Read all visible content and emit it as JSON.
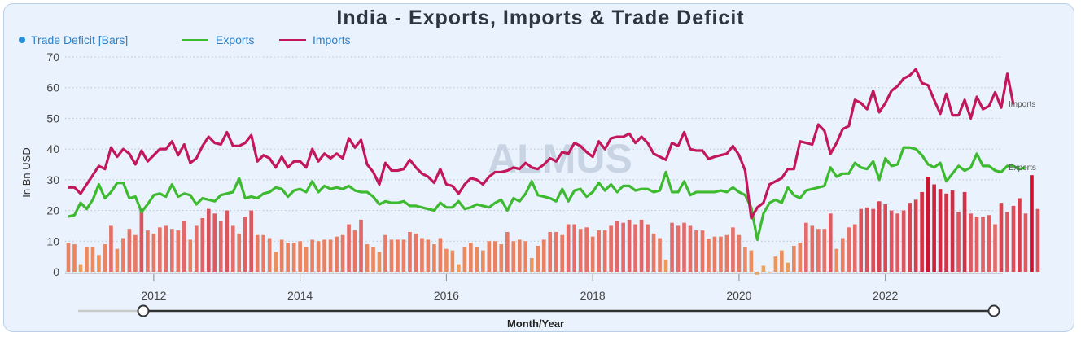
{
  "chart_data": {
    "type": "bar+line",
    "title": "India - Exports, Imports & Trade Deficit",
    "xlabel": "Month/Year",
    "ylabel": "In Bn USD",
    "ylim": [
      0,
      70
    ],
    "y_ticks": [
      "0",
      "10",
      "20",
      "30",
      "40",
      "50",
      "60",
      "70"
    ],
    "x_ticks": [
      "2012",
      "2014",
      "2016",
      "2018",
      "2020",
      "2022"
    ],
    "x_range": [
      "2010-11",
      "2023-08"
    ],
    "grid": true,
    "legend_position": "top-left",
    "watermark": "ALMUS",
    "legend": [
      {
        "label": "Trade Deficit [Bars]",
        "marker": "dot",
        "color": "#2a8fd8"
      },
      {
        "label": "Exports",
        "marker": "line",
        "color": "#3dba2f"
      },
      {
        "label": "Imports",
        "marker": "line",
        "color": "#c2185b"
      }
    ],
    "end_labels": {
      "imports": "Imports",
      "exports": "Exports"
    },
    "colors": {
      "deficit_low": "#f4a750",
      "deficit_mid": "#e36b6b",
      "deficit_high": "#c8102e"
    },
    "series": [
      {
        "name": "Imports",
        "values": [
          27.5,
          27.5,
          25.5,
          28.5,
          31.5,
          34.5,
          33.5,
          40.5,
          37.5,
          40,
          38.5,
          35,
          39.5,
          36,
          38,
          40,
          40,
          42.5,
          38,
          41.5,
          35.5,
          37,
          41,
          44,
          42,
          41.5,
          45.5,
          41,
          41,
          42,
          44.5,
          36,
          38,
          37,
          34,
          37.5,
          34,
          36,
          36,
          34,
          40,
          36,
          38.5,
          37,
          38.5,
          37,
          43.5,
          40.5,
          43,
          35,
          32.5,
          28.5,
          35.5,
          33,
          33,
          33.5,
          36.5,
          34,
          32,
          31,
          29,
          33.5,
          28.5,
          28,
          25.5,
          28.5,
          30.5,
          30,
          28.5,
          31,
          32.5,
          32.5,
          33,
          34,
          33.5,
          35.5,
          34,
          33.5,
          35,
          37,
          36,
          39,
          38.5,
          42,
          41,
          39,
          37.5,
          42.5,
          40,
          43.5,
          44,
          44,
          45,
          42,
          44,
          42,
          38.5,
          37.5,
          36.5,
          42,
          41,
          45.5,
          40,
          39.5,
          39.5,
          36.8,
          37.5,
          38,
          38.5,
          41,
          38,
          33,
          17.5,
          21,
          22.5,
          28.5,
          29.5,
          30.5,
          33.5,
          33.5,
          42.5,
          42,
          41.5,
          48,
          46,
          38.5,
          42,
          46.5,
          47.5,
          56,
          55,
          53,
          59,
          52,
          55,
          59,
          60.5,
          63,
          64,
          66,
          61.5,
          60.8,
          56,
          51.5,
          58,
          51,
          51,
          56,
          50,
          57,
          53,
          54,
          58.5,
          53.5,
          64.5,
          54.5
        ]
      },
      {
        "name": "Exports",
        "values": [
          18,
          18.5,
          22.5,
          20.5,
          23.5,
          28.5,
          24,
          26,
          29,
          29,
          24,
          24.5,
          19.5,
          22,
          25,
          25.5,
          24.5,
          28.5,
          24.5,
          25.5,
          25,
          22,
          24,
          23.5,
          23,
          25,
          25.5,
          26,
          30.5,
          24,
          24.5,
          24,
          25.5,
          26,
          27.5,
          27,
          24.5,
          26.5,
          27,
          26,
          29.5,
          26,
          28,
          27,
          27.5,
          27,
          28,
          26.5,
          26,
          26,
          24.5,
          22,
          23,
          22.5,
          22.5,
          23,
          21.5,
          21.5,
          21,
          20.5,
          20,
          22.5,
          21,
          21,
          23,
          20.5,
          21,
          22,
          21.5,
          21,
          22.5,
          23.5,
          20,
          24,
          23,
          25.5,
          29.5,
          25,
          24.5,
          24,
          23,
          27,
          23,
          26.5,
          27,
          24.5,
          26,
          29,
          26.5,
          28.5,
          26,
          28,
          28,
          26.5,
          27,
          27,
          26,
          26.5,
          32.5,
          26,
          26,
          29.5,
          25,
          26,
          26,
          26,
          26,
          26.5,
          26,
          27.5,
          26,
          25,
          21,
          10.5,
          19,
          22.5,
          23.5,
          22.5,
          27.5,
          25,
          24,
          26.5,
          27,
          27.5,
          28,
          34,
          31,
          32,
          32,
          35.5,
          34,
          33.5,
          36,
          30,
          37,
          34.5,
          35,
          40.5,
          40.5,
          40,
          38,
          35,
          34,
          35.5,
          29.5,
          32,
          34.5,
          33,
          34,
          38.5,
          34.5,
          34.5,
          33,
          32.5,
          34.5,
          34.5,
          33.5,
          34
        ]
      },
      {
        "name": "Trade Deficit",
        "values": [
          9.5,
          9,
          2.5,
          8,
          8,
          5.5,
          9,
          15,
          7.5,
          11,
          14,
          12,
          20,
          13.5,
          12.5,
          14.5,
          15,
          14,
          13.5,
          16.5,
          10.5,
          15,
          17.5,
          20.5,
          19,
          16.5,
          20,
          15,
          12.5,
          18,
          20,
          12,
          12,
          11,
          6.5,
          10.5,
          9.5,
          9.5,
          10,
          8,
          10.5,
          10,
          10.5,
          10.5,
          11.5,
          12,
          15.5,
          13.5,
          17,
          9,
          8,
          6.5,
          12,
          10.5,
          10.5,
          10.5,
          13,
          12.5,
          11,
          10.5,
          9,
          11,
          7.5,
          7,
          2.5,
          8,
          9.5,
          8,
          7,
          10,
          10,
          9,
          13,
          10,
          10.5,
          10,
          4.5,
          8.5,
          10.5,
          13,
          13,
          12,
          15.5,
          15.5,
          14,
          14.5,
          11.5,
          13.5,
          13.5,
          15,
          16.5,
          16,
          17,
          15.5,
          17,
          15.5,
          12.5,
          11,
          4,
          16,
          15,
          16,
          15,
          13.5,
          13.5,
          10.8,
          11.5,
          11.5,
          12,
          14.5,
          12,
          8,
          7,
          -1,
          2,
          0,
          5,
          7,
          3,
          8.5,
          9.5,
          16,
          15,
          14,
          14,
          19,
          7.5,
          11,
          14.5,
          15.5,
          20.5,
          21,
          20.5,
          23,
          22,
          20,
          19,
          20,
          22.5,
          23.5,
          26,
          31,
          28.5,
          27,
          25.5,
          26.5,
          19.5,
          26,
          19,
          18,
          18,
          18.5,
          15.5,
          22.5,
          19.5,
          21.5,
          24,
          19,
          31.5,
          20.5
        ]
      }
    ]
  }
}
